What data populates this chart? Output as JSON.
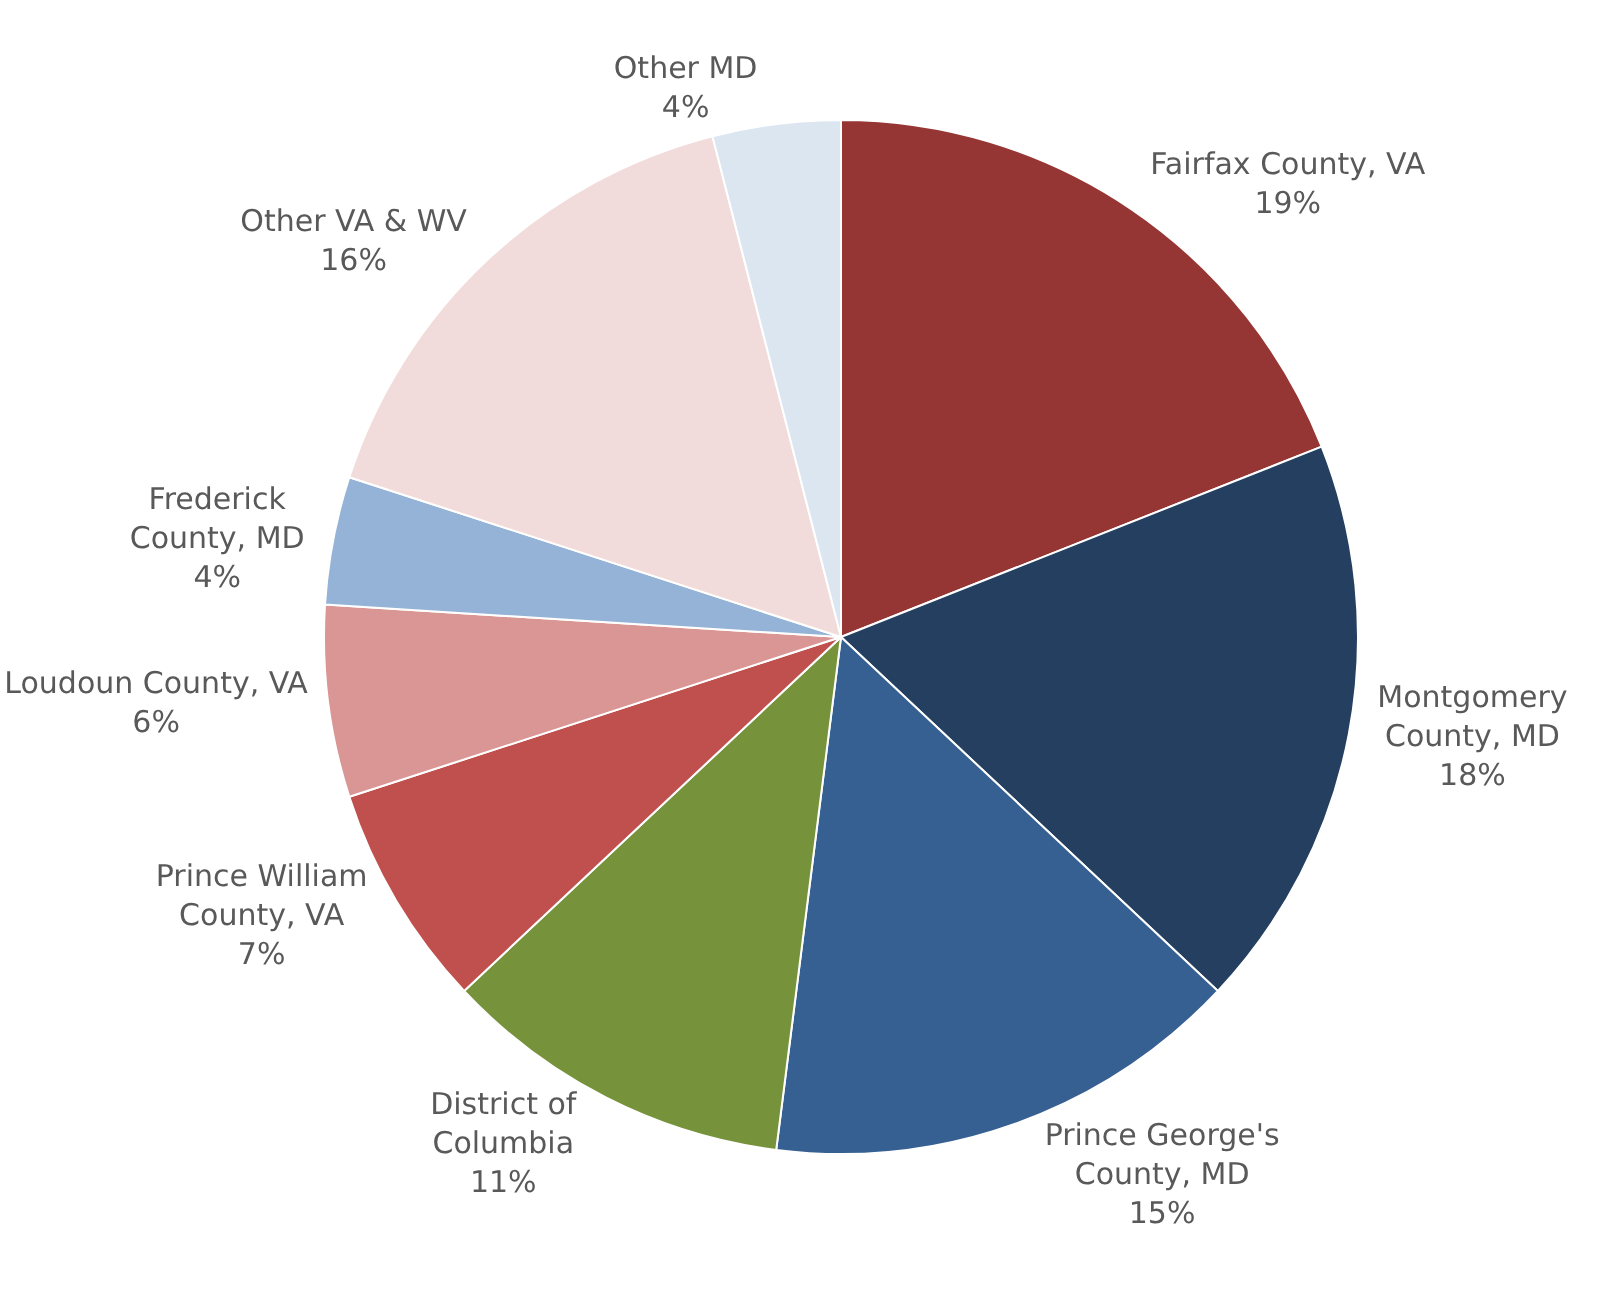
{
  "chart_data": {
    "type": "pie",
    "categories": [
      "Fairfax County, VA",
      "Montgomery County, MD",
      "Prince George's County, MD",
      "District of Columbia",
      "Prince William County, VA",
      "Loudoun County, VA",
      "Frederick County, MD",
      "Other VA & WV",
      "Other MD"
    ],
    "values": [
      19,
      18,
      15,
      11,
      7,
      6,
      4,
      16,
      4
    ],
    "value_labels": [
      "19%",
      "18%",
      "15%",
      "11%",
      "7%",
      "6%",
      "4%",
      "16%",
      "4%"
    ],
    "colors": [
      "#963634",
      "#243f60",
      "#366092",
      "#76933c",
      "#c0504d",
      "#da9694",
      "#95b3d7",
      "#f2dcdb",
      "#dce6f1"
    ],
    "legend": false
  }
}
